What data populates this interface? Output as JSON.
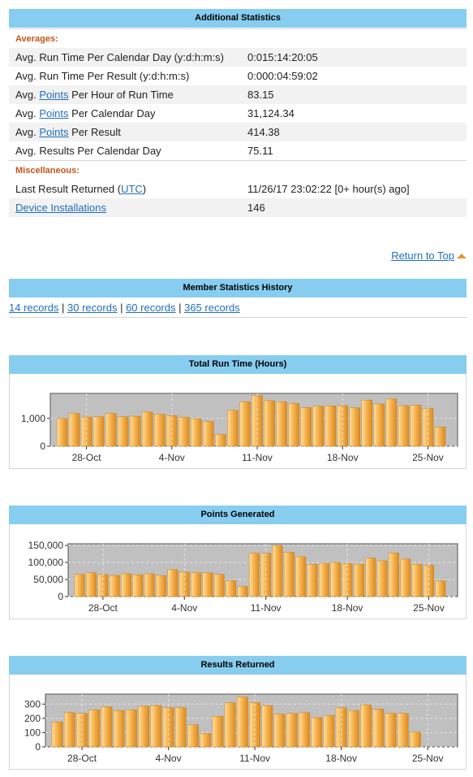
{
  "additional": {
    "title": "Additional Statistics",
    "averages_label": "Averages:",
    "rows": [
      {
        "pre": "Avg. Run Time Per Calendar Day (y:d:h:m:s)",
        "link": "",
        "post": "",
        "value": "0:015:14:20:05"
      },
      {
        "pre": "Avg. Run Time Per Result (y:d:h:m:s)",
        "link": "",
        "post": "",
        "value": "0:000:04:59:02"
      },
      {
        "pre": "Avg. ",
        "link": "Points",
        "post": " Per Hour of Run Time",
        "value": "83.15"
      },
      {
        "pre": "Avg. ",
        "link": "Points",
        "post": " Per Calendar Day",
        "value": "31,124.34"
      },
      {
        "pre": "Avg. ",
        "link": "Points",
        "post": " Per Result",
        "value": "414.38"
      },
      {
        "pre": "Avg. Results Per Calendar Day",
        "link": "",
        "post": "",
        "value": "75.11"
      }
    ],
    "misc_label": "Miscellaneous:",
    "last_result": {
      "pre": "Last Result Returned (",
      "link": "UTC",
      "post": ")",
      "value": "11/26/17 23:02:22 [0+ hour(s) ago]"
    },
    "devices": {
      "link": "Device Installations",
      "value": "146"
    }
  },
  "return_to_top": "Return to Top",
  "history": {
    "title": "Member Statistics History",
    "links": [
      "14 records",
      "30 records",
      "60 records",
      "365 records"
    ],
    "sep": " | "
  },
  "colors": {
    "header": "#87cdf0",
    "bar": "#f6b04a",
    "plot_bg": "#c0c0c0",
    "link": "#1f6fbf",
    "section": "#c0561a"
  },
  "chart_data": [
    {
      "type": "bar",
      "title": "Total Run Time (Hours)",
      "xticks": [
        "28-Oct",
        "4-Nov",
        "11-Nov",
        "18-Nov",
        "25-Nov"
      ],
      "yticks": [
        0,
        1000
      ],
      "ytick_labels": [
        "0",
        "1,000"
      ],
      "ylim": [
        0,
        1900
      ],
      "x": [
        "26-Oct",
        "27-Oct",
        "28-Oct",
        "29-Oct",
        "30-Oct",
        "31-Oct",
        "1-Nov",
        "2-Nov",
        "3-Nov",
        "4-Nov",
        "5-Nov",
        "6-Nov",
        "7-Nov",
        "8-Nov",
        "9-Nov",
        "10-Nov",
        "11-Nov",
        "12-Nov",
        "13-Nov",
        "14-Nov",
        "15-Nov",
        "16-Nov",
        "17-Nov",
        "18-Nov",
        "19-Nov",
        "20-Nov",
        "21-Nov",
        "22-Nov",
        "23-Nov",
        "24-Nov",
        "25-Nov",
        "26-Nov"
      ],
      "values": [
        1000,
        1180,
        1050,
        1060,
        1180,
        1060,
        1080,
        1230,
        1150,
        1100,
        1040,
        990,
        890,
        420,
        1290,
        1600,
        1820,
        1640,
        1600,
        1540,
        1390,
        1440,
        1450,
        1460,
        1380,
        1660,
        1520,
        1700,
        1460,
        1480,
        1360,
        690
      ],
      "grid": true
    },
    {
      "type": "bar",
      "title": "Points Generated",
      "xticks": [
        "28-Oct",
        "4-Nov",
        "11-Nov",
        "18-Nov",
        "25-Nov"
      ],
      "yticks": [
        0,
        50000,
        100000,
        150000
      ],
      "ytick_labels": [
        "0",
        "50,000",
        "100,000",
        "150,000"
      ],
      "ylim": [
        0,
        155000
      ],
      "x": [
        "26-Oct",
        "27-Oct",
        "28-Oct",
        "29-Oct",
        "30-Oct",
        "31-Oct",
        "1-Nov",
        "2-Nov",
        "3-Nov",
        "4-Nov",
        "5-Nov",
        "6-Nov",
        "7-Nov",
        "8-Nov",
        "9-Nov",
        "10-Nov",
        "11-Nov",
        "12-Nov",
        "13-Nov",
        "14-Nov",
        "15-Nov",
        "16-Nov",
        "17-Nov",
        "18-Nov",
        "19-Nov",
        "20-Nov",
        "21-Nov",
        "22-Nov",
        "23-Nov",
        "24-Nov",
        "25-Nov",
        "26-Nov"
      ],
      "values": [
        65000,
        70000,
        65000,
        62000,
        67000,
        64000,
        67000,
        62000,
        79000,
        72000,
        70000,
        70000,
        65000,
        47000,
        30000,
        127000,
        127000,
        150000,
        130000,
        117000,
        95000,
        98000,
        100000,
        97000,
        95000,
        113000,
        105000,
        128000,
        110000,
        95000,
        92000,
        46000
      ],
      "grid": true
    },
    {
      "type": "bar",
      "title": "Results Returned",
      "xticks": [
        "28-Oct",
        "4-Nov",
        "11-Nov",
        "18-Nov",
        "25-Nov"
      ],
      "yticks": [
        0,
        100,
        200,
        300
      ],
      "ytick_labels": [
        "0",
        "100",
        "200",
        "300"
      ],
      "ylim": [
        0,
        370
      ],
      "x": [
        "26-Oct",
        "27-Oct",
        "28-Oct",
        "29-Oct",
        "30-Oct",
        "31-Oct",
        "1-Nov",
        "2-Nov",
        "3-Nov",
        "4-Nov",
        "5-Nov",
        "6-Nov",
        "7-Nov",
        "8-Nov",
        "9-Nov",
        "10-Nov",
        "11-Nov",
        "12-Nov",
        "13-Nov",
        "14-Nov",
        "15-Nov",
        "16-Nov",
        "17-Nov",
        "18-Nov",
        "19-Nov",
        "20-Nov",
        "21-Nov",
        "22-Nov",
        "23-Nov",
        "24-Nov",
        "25-Nov",
        "26-Nov"
      ],
      "values": [
        175,
        240,
        235,
        260,
        280,
        255,
        260,
        285,
        290,
        275,
        275,
        155,
        95,
        215,
        310,
        350,
        310,
        290,
        230,
        235,
        240,
        205,
        220,
        275,
        255,
        295,
        265,
        235,
        235,
        105,
        0,
        0
      ],
      "grid": true
    }
  ]
}
